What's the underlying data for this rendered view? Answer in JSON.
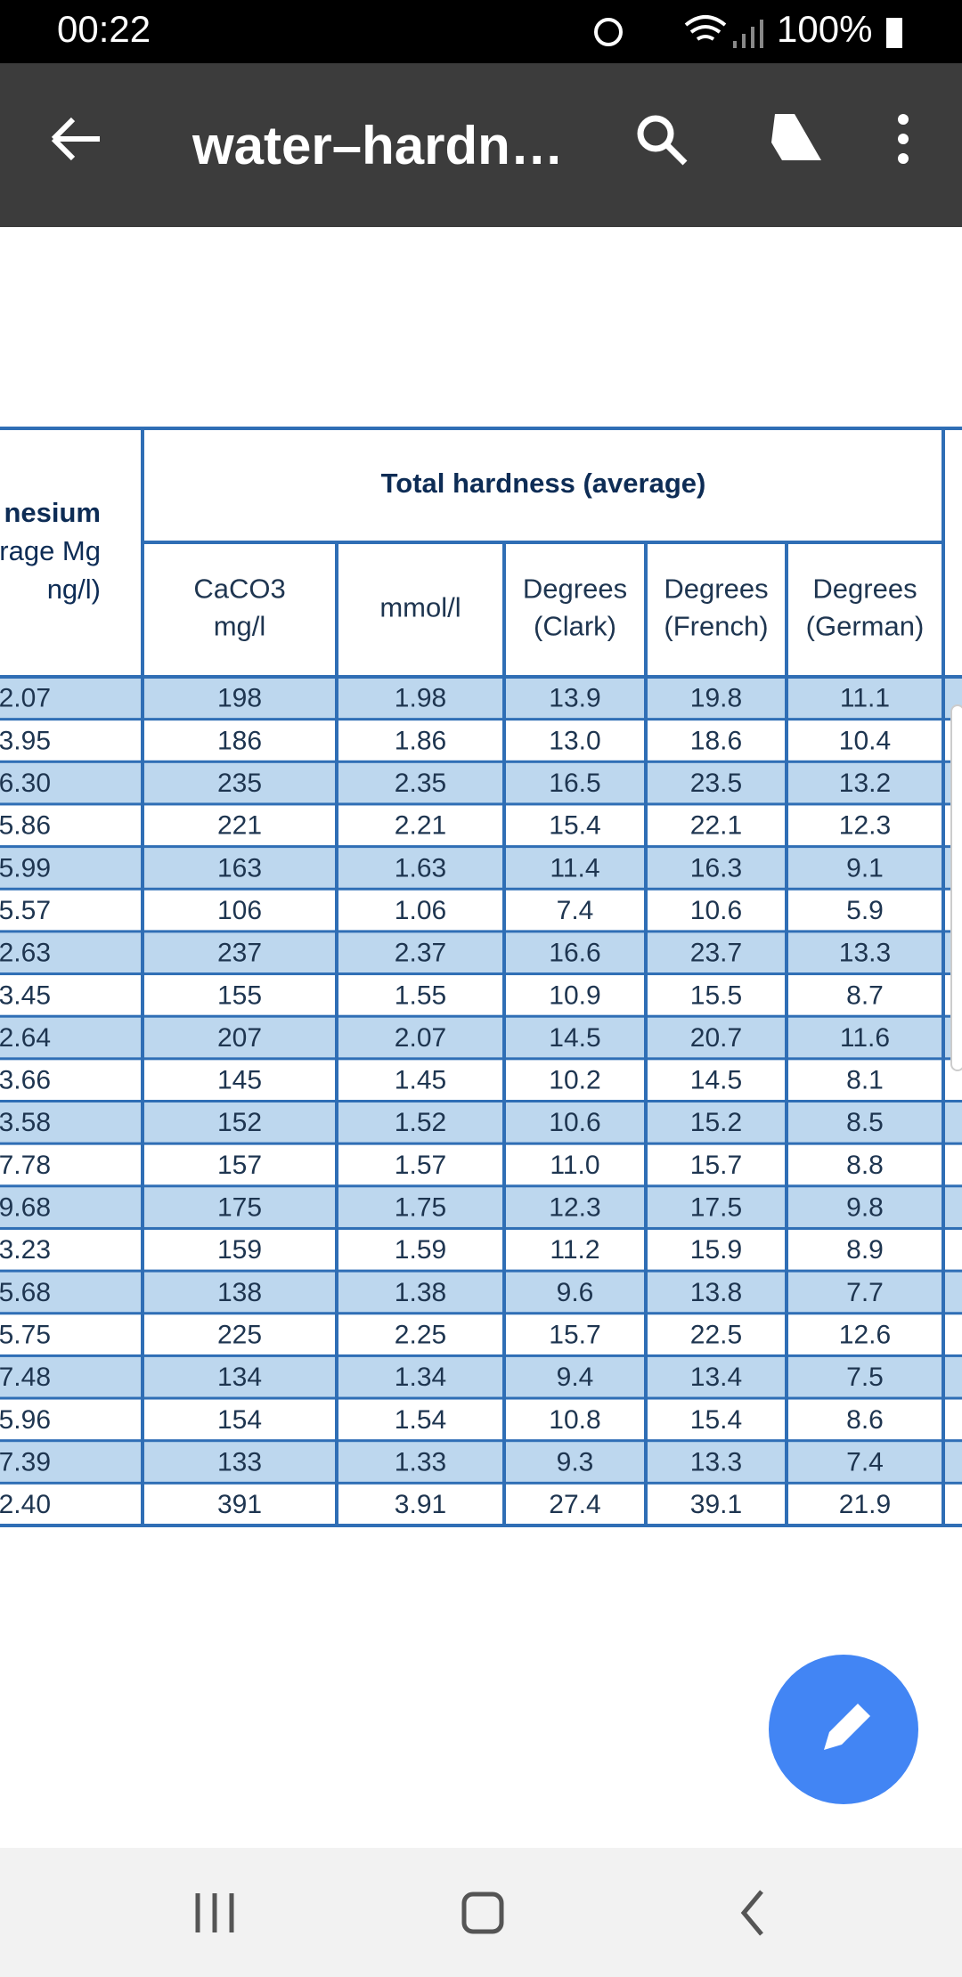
{
  "status_bar": {
    "time": "00:22",
    "battery": "100%"
  },
  "app_bar": {
    "title": "water–hardn…"
  },
  "table": {
    "left_header": [
      "nesium",
      "rage Mg",
      "ng/l)"
    ],
    "group_header": "Total hardness (average)",
    "columns": [
      [
        "CaCO3",
        "mg/l"
      ],
      [
        "mmol/l"
      ],
      [
        "Degrees",
        "(Clark)"
      ],
      [
        "Degrees",
        "(French)"
      ],
      [
        "Degrees",
        "(German)"
      ]
    ],
    "rows": [
      [
        "2.07",
        "198",
        "1.98",
        "13.9",
        "19.8",
        "11.1"
      ],
      [
        "3.95",
        "186",
        "1.86",
        "13.0",
        "18.6",
        "10.4"
      ],
      [
        "6.30",
        "235",
        "2.35",
        "16.5",
        "23.5",
        "13.2"
      ],
      [
        "5.86",
        "221",
        "2.21",
        "15.4",
        "22.1",
        "12.3"
      ],
      [
        "5.99",
        "163",
        "1.63",
        "11.4",
        "16.3",
        "9.1"
      ],
      [
        "5.57",
        "106",
        "1.06",
        "7.4",
        "10.6",
        "5.9"
      ],
      [
        "2.63",
        "237",
        "2.37",
        "16.6",
        "23.7",
        "13.3"
      ],
      [
        "3.45",
        "155",
        "1.55",
        "10.9",
        "15.5",
        "8.7"
      ],
      [
        "2.64",
        "207",
        "2.07",
        "14.5",
        "20.7",
        "11.6"
      ],
      [
        "3.66",
        "145",
        "1.45",
        "10.2",
        "14.5",
        "8.1"
      ],
      [
        "3.58",
        "152",
        "1.52",
        "10.6",
        "15.2",
        "8.5"
      ],
      [
        "7.78",
        "157",
        "1.57",
        "11.0",
        "15.7",
        "8.8"
      ],
      [
        "9.68",
        "175",
        "1.75",
        "12.3",
        "17.5",
        "9.8"
      ],
      [
        "3.23",
        "159",
        "1.59",
        "11.2",
        "15.9",
        "8.9"
      ],
      [
        "5.68",
        "138",
        "1.38",
        "9.6",
        "13.8",
        "7.7"
      ],
      [
        "5.75",
        "225",
        "2.25",
        "15.7",
        "22.5",
        "12.6"
      ],
      [
        "7.48",
        "134",
        "1.34",
        "9.4",
        "13.4",
        "7.5"
      ],
      [
        "5.96",
        "154",
        "1.54",
        "10.8",
        "15.4",
        "8.6"
      ],
      [
        "7.39",
        "133",
        "1.33",
        "9.3",
        "13.3",
        "7.4"
      ],
      [
        "2.40",
        "391",
        "3.91",
        "27.4",
        "39.1",
        "21.9"
      ]
    ]
  }
}
